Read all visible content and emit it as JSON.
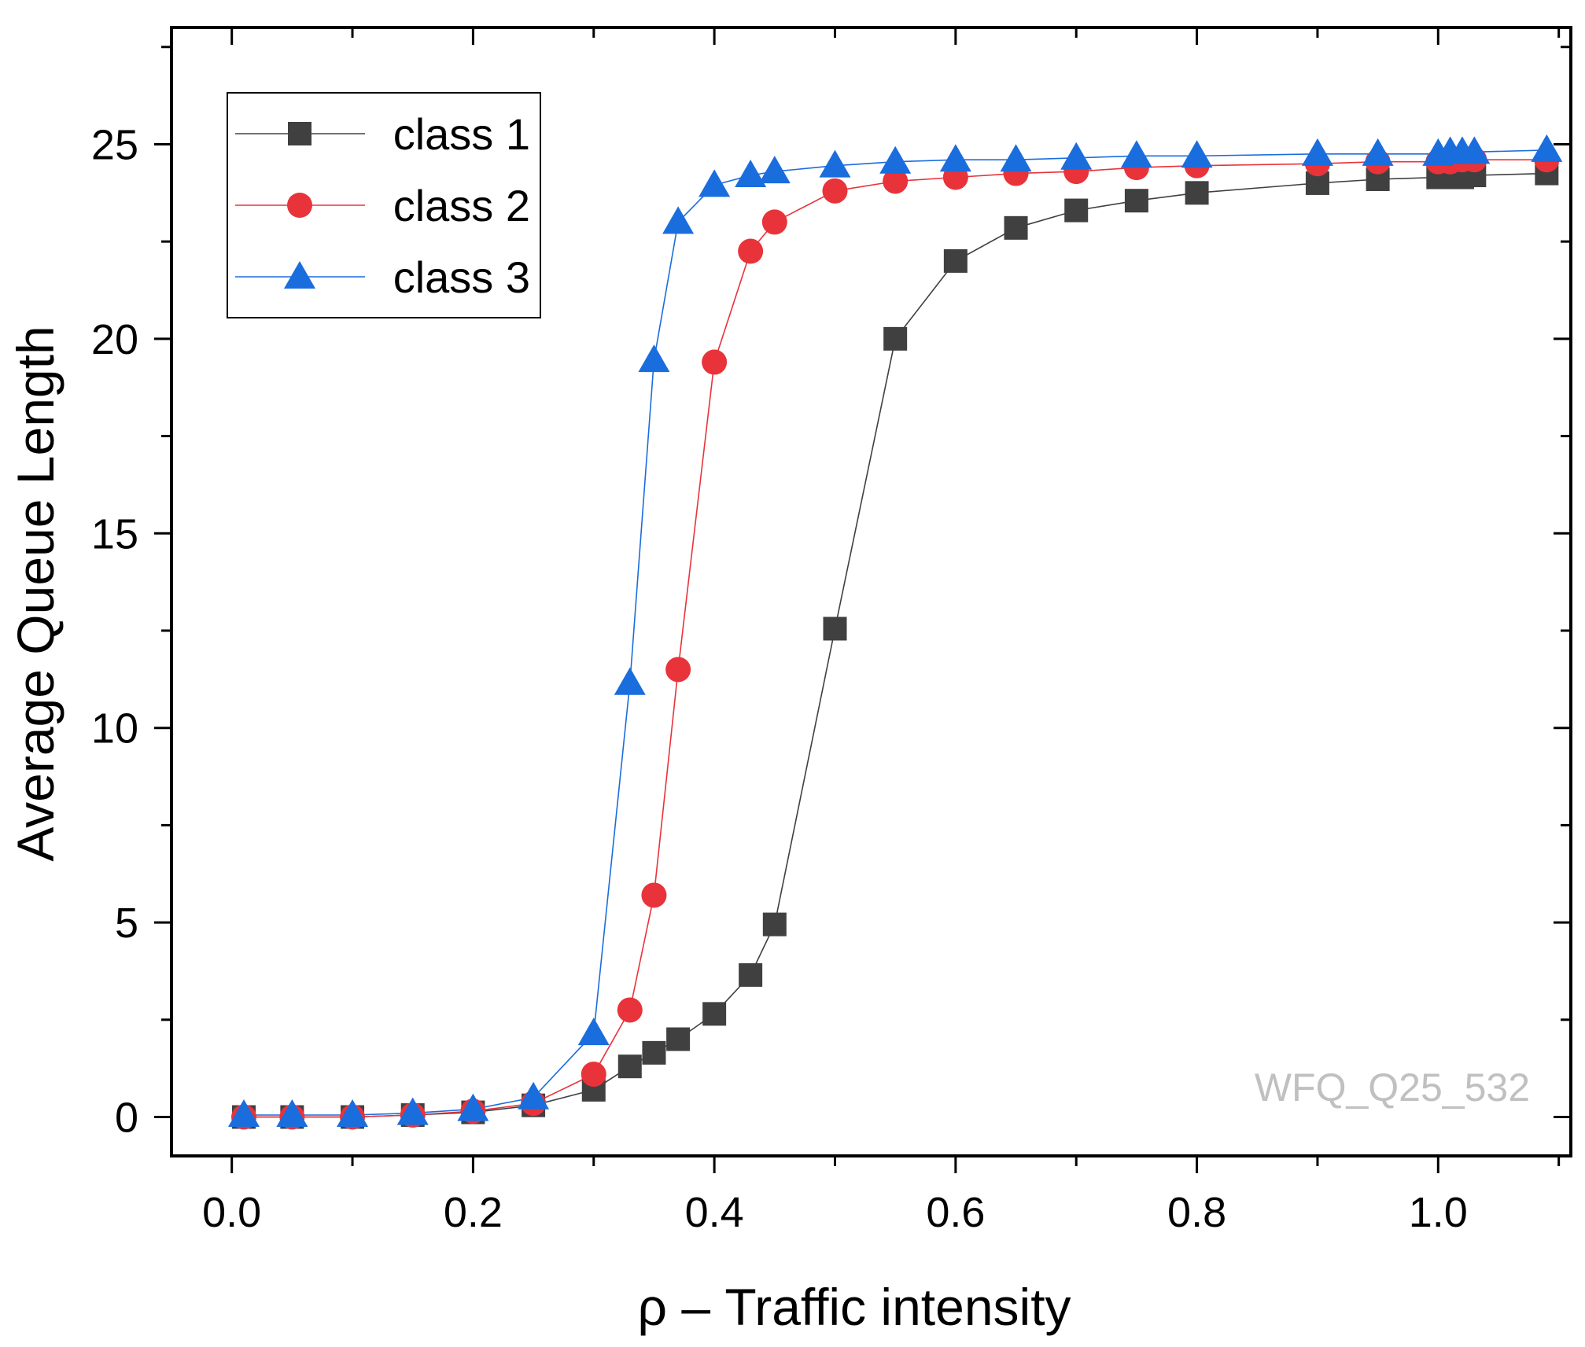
{
  "chart_data": {
    "type": "line",
    "xlabel": "ρ – Traffic intensity",
    "ylabel": "Average Queue Length",
    "xlim": [
      -0.05,
      1.11
    ],
    "ylim": [
      -1,
      28
    ],
    "x_ticks": [
      0.0,
      0.2,
      0.4,
      0.6,
      0.8,
      1.0
    ],
    "x_tick_labels": [
      "0.0",
      "0.2",
      "0.4",
      "0.6",
      "0.8",
      "1.0"
    ],
    "y_ticks": [
      0,
      5,
      10,
      15,
      20,
      25
    ],
    "y_tick_labels": [
      "0",
      "5",
      "10",
      "15",
      "20",
      "25"
    ],
    "grid": false,
    "legend_position": "top-left",
    "watermark": "WFQ_Q25_532",
    "series": [
      {
        "name": "class 1",
        "marker": "square",
        "color": "#404040",
        "points": [
          [
            0.01,
            0.0
          ],
          [
            0.05,
            0.0
          ],
          [
            0.1,
            0.0
          ],
          [
            0.15,
            0.05
          ],
          [
            0.2,
            0.12
          ],
          [
            0.25,
            0.3
          ],
          [
            0.3,
            0.7
          ],
          [
            0.33,
            1.3
          ],
          [
            0.35,
            1.65
          ],
          [
            0.37,
            2.0
          ],
          [
            0.4,
            2.65
          ],
          [
            0.43,
            3.65
          ],
          [
            0.45,
            4.95
          ],
          [
            0.5,
            12.55
          ],
          [
            0.55,
            20.0
          ],
          [
            0.6,
            22.0
          ],
          [
            0.65,
            22.85
          ],
          [
            0.7,
            23.3
          ],
          [
            0.75,
            23.55
          ],
          [
            0.8,
            23.75
          ],
          [
            0.9,
            24.0
          ],
          [
            0.95,
            24.1
          ],
          [
            1.0,
            24.15
          ],
          [
            1.01,
            24.15
          ],
          [
            1.02,
            24.15
          ],
          [
            1.03,
            24.2
          ],
          [
            1.09,
            24.25
          ]
        ]
      },
      {
        "name": "class 2",
        "marker": "circle",
        "color": "#e8333a",
        "points": [
          [
            0.01,
            0.0
          ],
          [
            0.05,
            0.0
          ],
          [
            0.1,
            0.0
          ],
          [
            0.15,
            0.05
          ],
          [
            0.2,
            0.15
          ],
          [
            0.25,
            0.35
          ],
          [
            0.3,
            1.1
          ],
          [
            0.33,
            2.75
          ],
          [
            0.35,
            5.7
          ],
          [
            0.37,
            11.5
          ],
          [
            0.4,
            19.4
          ],
          [
            0.43,
            22.25
          ],
          [
            0.45,
            23.0
          ],
          [
            0.5,
            23.8
          ],
          [
            0.55,
            24.05
          ],
          [
            0.6,
            24.15
          ],
          [
            0.65,
            24.25
          ],
          [
            0.7,
            24.3
          ],
          [
            0.75,
            24.4
          ],
          [
            0.8,
            24.45
          ],
          [
            0.9,
            24.5
          ],
          [
            0.95,
            24.55
          ],
          [
            1.0,
            24.55
          ],
          [
            1.01,
            24.55
          ],
          [
            1.02,
            24.6
          ],
          [
            1.03,
            24.6
          ],
          [
            1.09,
            24.6
          ]
        ]
      },
      {
        "name": "class 3",
        "marker": "triangle",
        "color": "#1a6ddd",
        "points": [
          [
            0.01,
            0.05
          ],
          [
            0.05,
            0.05
          ],
          [
            0.1,
            0.05
          ],
          [
            0.15,
            0.1
          ],
          [
            0.2,
            0.2
          ],
          [
            0.25,
            0.5
          ],
          [
            0.3,
            2.15
          ],
          [
            0.33,
            11.15
          ],
          [
            0.35,
            19.45
          ],
          [
            0.37,
            23.0
          ],
          [
            0.4,
            23.95
          ],
          [
            0.43,
            24.2
          ],
          [
            0.45,
            24.3
          ],
          [
            0.5,
            24.45
          ],
          [
            0.55,
            24.55
          ],
          [
            0.6,
            24.6
          ],
          [
            0.65,
            24.6
          ],
          [
            0.7,
            24.65
          ],
          [
            0.75,
            24.7
          ],
          [
            0.8,
            24.7
          ],
          [
            0.9,
            24.75
          ],
          [
            0.95,
            24.75
          ],
          [
            1.0,
            24.75
          ],
          [
            1.01,
            24.8
          ],
          [
            1.02,
            24.8
          ],
          [
            1.03,
            24.8
          ],
          [
            1.09,
            24.85
          ]
        ]
      }
    ]
  }
}
